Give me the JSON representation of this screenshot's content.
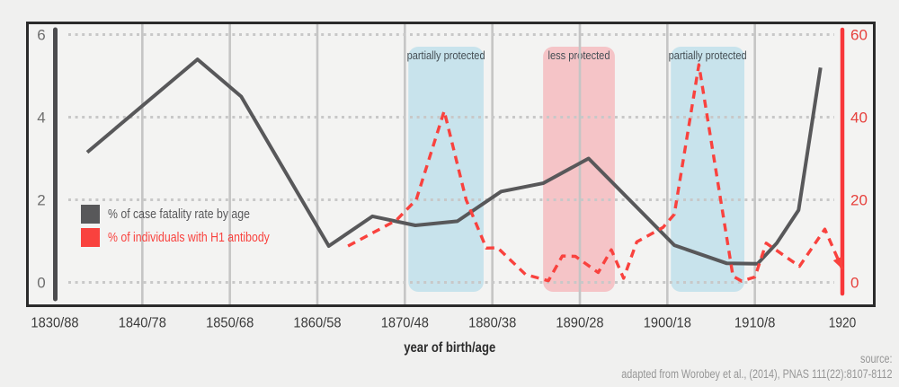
{
  "figure": {
    "background": "#f0f0ef",
    "plot_background": "#f3f3f2",
    "border_color": "#2b2b2b",
    "vgrid_color": "#c5c5c5",
    "dot_grid_color": "#c8c8c8",
    "left_axis_color": "#4c4c4e",
    "right_axis_color": "#f8373a",
    "left_tick_color": "#6e6e6e",
    "right_tick_color": "#e6413d",
    "x_label_color": "#3a3a3a",
    "region_label_color": "#454e54"
  },
  "legend": {
    "items": [
      {
        "label": "% of case fatality rate by age",
        "color": "#58585a"
      },
      {
        "label": "% of individuals with H1 antibody",
        "color": "#f9423e"
      }
    ]
  },
  "source": {
    "line1": "source:",
    "line2": "adapted from Worobey et al., (2014), PNAS 111(22):8107-8112"
  },
  "chart_data": {
    "type": "line",
    "title": "",
    "xlabel": "year of birth/age",
    "x_range": [
      1830,
      1920
    ],
    "grid": "horizontal dotted at left-axis ticks, vertical solid at decades",
    "legend_position": "inside upper-left area of plot",
    "x_ticks": [
      {
        "year": 1830,
        "label": "1830/88"
      },
      {
        "year": 1840,
        "label": "1840/78"
      },
      {
        "year": 1850,
        "label": "1850/68"
      },
      {
        "year": 1860,
        "label": "1860/58"
      },
      {
        "year": 1870,
        "label": "1870/48"
      },
      {
        "year": 1880,
        "label": "1880/38"
      },
      {
        "year": 1890,
        "label": "1890/28"
      },
      {
        "year": 1900,
        "label": "1900/18"
      },
      {
        "year": 1910,
        "label": "1910/8"
      },
      {
        "year": 1920,
        "label": "1920"
      }
    ],
    "left_axis": {
      "ticks": [
        0,
        2,
        4,
        6
      ],
      "range": [
        0,
        6.3
      ]
    },
    "right_axis": {
      "ticks": [
        0,
        20,
        40,
        60
      ],
      "range": [
        0,
        63
      ]
    },
    "regions": [
      {
        "label": "partially protected",
        "from": 1870.4,
        "to": 1879.0,
        "color": "#c8e3ec",
        "label_length": 87
      },
      {
        "label": "less protected",
        "from": 1885.8,
        "to": 1894.0,
        "color": "#f5c4c7",
        "label_length": 69
      },
      {
        "label": "partially protected",
        "from": 1900.4,
        "to": 1908.8,
        "color": "#c8e3ec",
        "label_length": 87
      }
    ],
    "series": [
      {
        "name": "% of case fatality rate by age",
        "axis": "left",
        "style": "solid",
        "color": "#58585a",
        "points": [
          [
            1833.7,
            3.15
          ],
          [
            1846.3,
            5.4
          ],
          [
            1851.3,
            4.5
          ],
          [
            1861.3,
            0.88
          ],
          [
            1866.3,
            1.6
          ],
          [
            1871.2,
            1.38
          ],
          [
            1876,
            1.48
          ],
          [
            1881,
            2.2
          ],
          [
            1885.8,
            2.4
          ],
          [
            1891,
            3.0
          ],
          [
            1900.8,
            0.9
          ],
          [
            1906.8,
            0.46
          ],
          [
            1910.3,
            0.45
          ],
          [
            1912.5,
            0.95
          ],
          [
            1915,
            1.75
          ],
          [
            1917.5,
            5.2
          ]
        ]
      },
      {
        "name": "% of individuals with H1 antibody",
        "axis": "right",
        "style": "dashed",
        "color": "#f9423e",
        "arrow_end": true,
        "points": [
          [
            1863.5,
            8.8
          ],
          [
            1869,
            15
          ],
          [
            1871.3,
            20
          ],
          [
            1874.5,
            41.5
          ],
          [
            1877,
            20
          ],
          [
            1879.3,
            8.3
          ],
          [
            1880.6,
            8.4
          ],
          [
            1883.8,
            1.9
          ],
          [
            1886.4,
            0.4
          ],
          [
            1888,
            6.4
          ],
          [
            1889.5,
            6.3
          ],
          [
            1892.1,
            2.4
          ],
          [
            1893.6,
            7.9
          ],
          [
            1895,
            1.0
          ],
          [
            1896.5,
            9.8
          ],
          [
            1899.5,
            13.3
          ],
          [
            1900.8,
            16.5
          ],
          [
            1903.6,
            52.7
          ],
          [
            1907.5,
            1.5
          ],
          [
            1908.5,
            0.3
          ],
          [
            1910,
            1.3
          ],
          [
            1911.3,
            9.5
          ],
          [
            1915.1,
            3.9
          ],
          [
            1918,
            12.9
          ],
          [
            1920,
            3.2
          ]
        ]
      }
    ]
  }
}
